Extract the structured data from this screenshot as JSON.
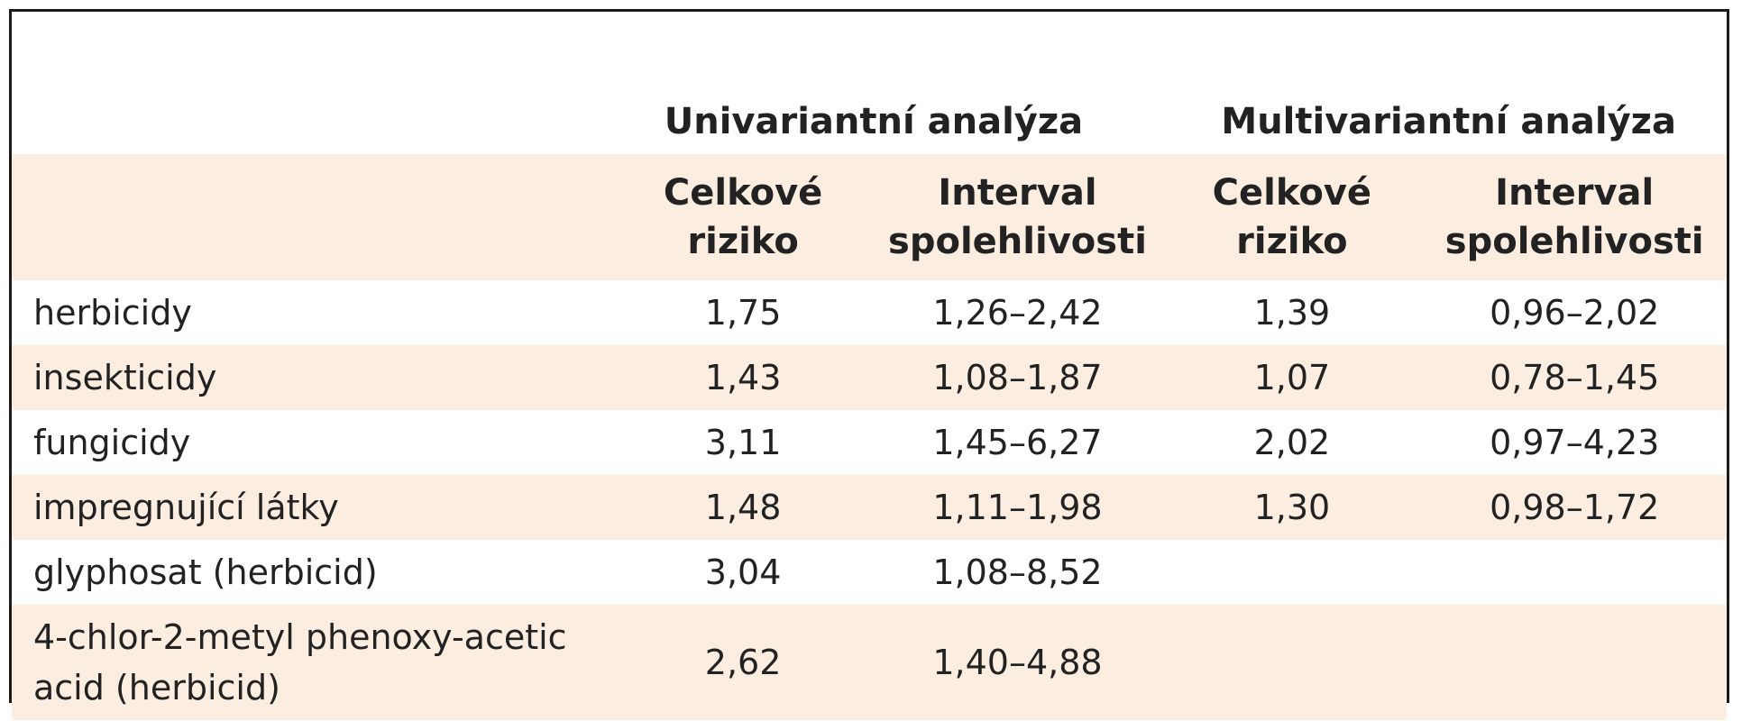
{
  "table": {
    "group_headers": {
      "univariate": "Univariantní analýza",
      "multivariate": "Multivariantní analýza"
    },
    "sub_headers": {
      "uni_risk": "Celkové riziko",
      "uni_interval": "Interval spolehlivosti",
      "multi_risk": "Celkové riziko",
      "multi_interval": "Interval spolehlivosti"
    },
    "rows": [
      {
        "label": "herbicidy",
        "uni_risk": "1,75",
        "uni_interval": "1,26–2,42",
        "multi_risk": "1,39",
        "multi_interval": "0,96–2,02"
      },
      {
        "label": "insekticidy",
        "uni_risk": "1,43",
        "uni_interval": "1,08–1,87",
        "multi_risk": "1,07",
        "multi_interval": "0,78–1,45"
      },
      {
        "label": "fungicidy",
        "uni_risk": "3,11",
        "uni_interval": "1,45–6,27",
        "multi_risk": "2,02",
        "multi_interval": "0,97–4,23"
      },
      {
        "label": "impregnující látky",
        "uni_risk": "1,48",
        "uni_interval": "1,11–1,98",
        "multi_risk": "1,30",
        "multi_interval": "0,98–1,72"
      },
      {
        "label": "glyphosat (herbicid)",
        "uni_risk": "3,04",
        "uni_interval": "1,08–8,52",
        "multi_risk": "",
        "multi_interval": ""
      },
      {
        "label": "4-chlor-2-metyl phenoxy-acetic acid (herbicid)",
        "uni_risk": "2,62",
        "uni_interval": "1,40–4,88",
        "multi_risk": "",
        "multi_interval": ""
      }
    ]
  },
  "colors": {
    "shade": "#fbeee0",
    "border": "#1a1a1a",
    "text": "#222222"
  }
}
